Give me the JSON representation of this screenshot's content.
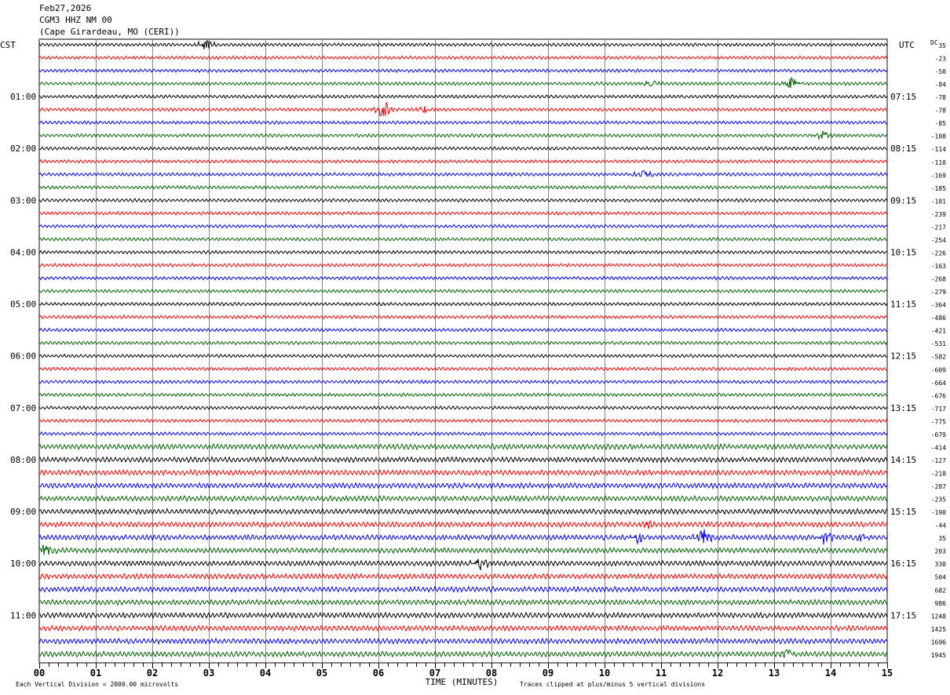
{
  "header": {
    "date": "Feb27,2026",
    "station": "CGM3 HHZ NM 00",
    "location": "(Cape Girardeau, MO (CERI))"
  },
  "chart_data": {
    "type": "line",
    "title": "CGM3 HHZ NM 00 helicorder",
    "xlabel": "TIME (MINUTES)",
    "left_axis_label": "CST",
    "right_axis_label": "UTC",
    "dc_label": "DC",
    "xlim": [
      0,
      15
    ],
    "x_ticks": [
      "00",
      "01",
      "02",
      "03",
      "04",
      "05",
      "06",
      "07",
      "08",
      "09",
      "10",
      "11",
      "12",
      "13",
      "14",
      "15"
    ],
    "trace_count": 48,
    "trace_colors": [
      "#000000",
      "#ff0000",
      "#0000ff",
      "#006400"
    ],
    "left_time_labels": [
      {
        "trace": 4,
        "label": "01:00"
      },
      {
        "trace": 8,
        "label": "02:00"
      },
      {
        "trace": 12,
        "label": "03:00"
      },
      {
        "trace": 16,
        "label": "04:00"
      },
      {
        "trace": 20,
        "label": "05:00"
      },
      {
        "trace": 24,
        "label": "06:00"
      },
      {
        "trace": 28,
        "label": "07:00"
      },
      {
        "trace": 32,
        "label": "08:00"
      },
      {
        "trace": 36,
        "label": "09:00"
      },
      {
        "trace": 40,
        "label": "10:00"
      },
      {
        "trace": 44,
        "label": "11:00"
      }
    ],
    "right_time_labels": [
      {
        "trace": 4,
        "label": "07:15"
      },
      {
        "trace": 8,
        "label": "08:15"
      },
      {
        "trace": 12,
        "label": "09:15"
      },
      {
        "trace": 16,
        "label": "10:15"
      },
      {
        "trace": 20,
        "label": "11:15"
      },
      {
        "trace": 24,
        "label": "12:15"
      },
      {
        "trace": 28,
        "label": "13:15"
      },
      {
        "trace": 32,
        "label": "14:15"
      },
      {
        "trace": 36,
        "label": "15:15"
      },
      {
        "trace": 40,
        "label": "16:15"
      },
      {
        "trace": 44,
        "label": "17:15"
      }
    ],
    "dc_offsets": [
      "35",
      "-23",
      "-50",
      "-84",
      "-78",
      "-78",
      "-85",
      "-108",
      "-114",
      "-110",
      "-169",
      "-185",
      "-181",
      "-239",
      "-217",
      "-254",
      "-226",
      "-163",
      "-268",
      "-279",
      "-364",
      "-486",
      "-421",
      "-531",
      "-582",
      "-609",
      "-664",
      "-676",
      "-717",
      "-775",
      "-679",
      "-414",
      "-127",
      "-218",
      "-287",
      "-235",
      "-190",
      "-44",
      "35",
      "203",
      "330",
      "504",
      "682",
      "986",
      "1248",
      "1425",
      "1696",
      "1945"
    ],
    "events": [
      {
        "trace": 0,
        "minute": 2.95,
        "amp": 8
      },
      {
        "trace": 3,
        "minute": 13.3,
        "amp": 9
      },
      {
        "trace": 3,
        "minute": 10.8,
        "amp": 5
      },
      {
        "trace": 5,
        "minute": 6.1,
        "amp": 14
      },
      {
        "trace": 5,
        "minute": 6.8,
        "amp": 6
      },
      {
        "trace": 7,
        "minute": 13.85,
        "amp": 8
      },
      {
        "trace": 10,
        "minute": 10.7,
        "amp": 6
      },
      {
        "trace": 37,
        "minute": 10.8,
        "amp": 5
      },
      {
        "trace": 38,
        "minute": 10.6,
        "amp": 8
      },
      {
        "trace": 38,
        "minute": 11.75,
        "amp": 10
      },
      {
        "trace": 38,
        "minute": 13.9,
        "amp": 9
      },
      {
        "trace": 38,
        "minute": 14.5,
        "amp": 6
      },
      {
        "trace": 39,
        "minute": 0.1,
        "amp": 8
      },
      {
        "trace": 40,
        "minute": 7.8,
        "amp": 8
      },
      {
        "trace": 47,
        "minute": 13.25,
        "amp": 6
      }
    ],
    "noise_amplitude": 2.6
  },
  "footer": {
    "scale_note": "Each Vertical Division = 2000.00 microvolts",
    "clip_note": "Traces clipped at plus/minus 5 vertical divisions"
  }
}
